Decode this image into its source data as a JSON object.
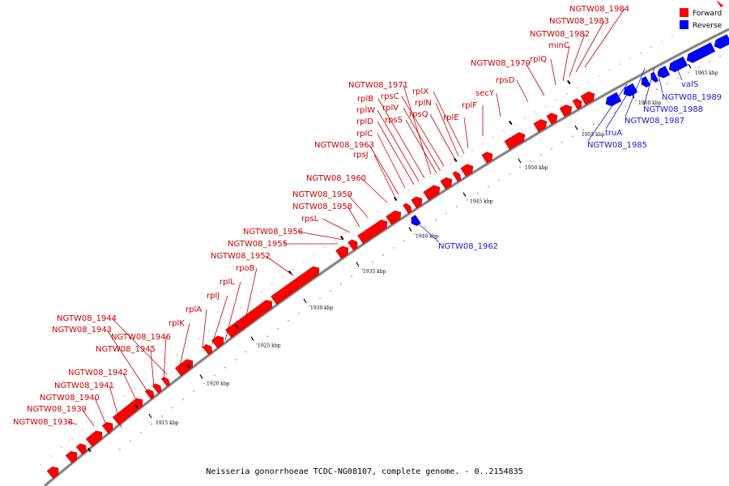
{
  "caption": "Neisseria gonorrhoeae TCDC-NG08107, complete genome. - 0..2154835",
  "colors": {
    "forward": "#ff0000",
    "reverse": "#0000ff",
    "label_forward": "#cc0000",
    "label_reverse": "#1a1ad6",
    "backbone": "#7a7a7a"
  },
  "legend": {
    "forward": "Forward",
    "reverse": "Reverse"
  },
  "scale": {
    "ticks": [
      "1915 kbp",
      "1920 kbp",
      "1925 kbp",
      "1930 kbp",
      "1935 kbp",
      "1940 kbp",
      "1945 kbp",
      "1950 kbp",
      "1955 kbp",
      "1960 kbp",
      "1965 kbp"
    ]
  },
  "genes_forward": [
    "NGTW08_1938",
    "NGTW08_1939",
    "NGTW08_1940",
    "NGTW08_1941",
    "NGTW08_1942",
    "NGTW08_1945",
    "NGTW08_1946",
    "NGTW08_1943",
    "NGTW08_1944",
    "rplK",
    "rplA",
    "rplJ",
    "rplL",
    "rpoB",
    "NGTW08_1952",
    "NGTW08_1955",
    "NGTW08_1956",
    "rpsL",
    "NGTW08_1958",
    "NGTW08_1959",
    "NGTW08_1960",
    "rpsJ",
    "NGTW08_1963",
    "rplC",
    "rplD",
    "rplW",
    "rplB",
    "NGTW08_1971",
    "rpsS",
    "rplV",
    "rpsC",
    "rpsQ",
    "rplN",
    "rplX",
    "rplE",
    "rplF",
    "secY",
    "rpsD",
    "NGTW08_1979",
    "rplQ",
    "minC",
    "NGTW08_1982",
    "NGTW08_1983",
    "NGTW08_1984"
  ],
  "genes_reverse": [
    "NGTW08_1962",
    "NGTW08_1985",
    "truA",
    "NGTW08_1987",
    "NGTW08_1988",
    "NGTW08_1989",
    "valS"
  ]
}
